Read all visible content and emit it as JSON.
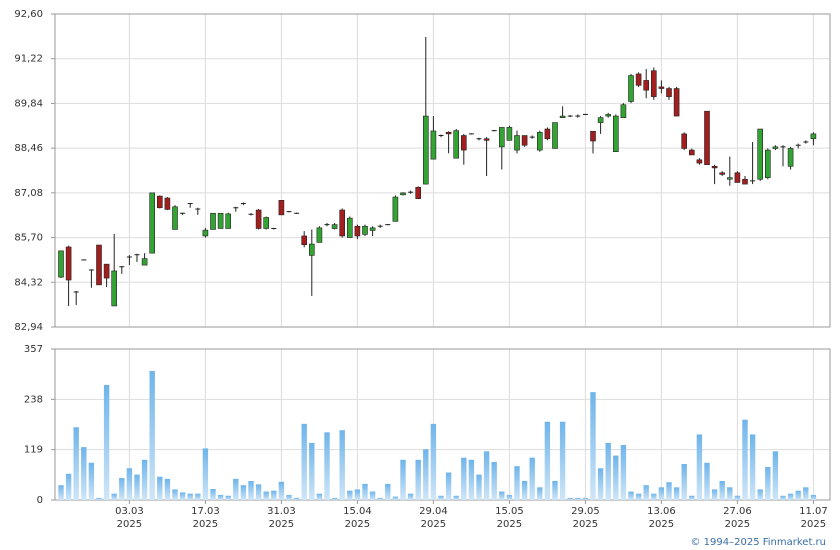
{
  "chart_data": [
    {
      "type": "candlestick",
      "open": [
        84.48,
        85.41,
        84.02,
        85.01,
        84.7,
        85.47,
        84.88,
        83.59,
        84.8,
        85.1,
        85.17,
        84.85,
        85.22,
        86.98,
        86.92,
        85.95,
        86.45,
        86.75,
        86.58,
        85.75,
        85.95,
        85.98,
        85.98,
        86.62,
        86.75,
        86.4,
        86.55,
        85.98,
        85.98,
        86.85,
        86.5,
        86.45,
        85.75,
        85.15,
        85.55,
        86.1,
        85.98,
        86.55,
        85.7,
        86.05,
        85.8,
        85.92,
        86.05,
        86.1,
        86.2,
        87.02,
        87.1,
        87.25,
        87.35,
        88.12,
        88.85,
        88.95,
        88.15,
        88.85,
        88.9,
        88.75,
        88.75,
        89.0,
        88.5,
        88.7,
        88.4,
        88.85,
        88.8,
        88.4,
        89.05,
        88.45,
        89.4,
        89.45,
        89.45,
        89.5,
        88.98,
        89.25,
        89.45,
        88.35,
        89.4,
        89.9,
        90.75,
        90.55,
        90.85,
        90.35,
        90.3,
        90.3,
        88.9,
        88.4,
        88.1,
        89.6,
        87.9,
        87.7,
        87.5,
        87.7,
        87.5,
        87.45,
        87.5,
        87.55,
        88.45,
        88.5,
        87.9,
        88.55,
        88.65,
        88.75
      ],
      "high": [
        85.3,
        85.45,
        84.05,
        85.02,
        84.72,
        85.47,
        84.88,
        85.81,
        84.82,
        85.16,
        85.2,
        85.22,
        87.08,
        87.0,
        86.95,
        86.7,
        86.47,
        86.77,
        86.62,
        86.0,
        86.45,
        86.45,
        86.47,
        86.65,
        86.78,
        86.45,
        86.58,
        86.35,
        86.0,
        86.85,
        86.52,
        86.47,
        85.9,
        85.95,
        86.05,
        86.15,
        86.15,
        86.6,
        86.35,
        86.1,
        86.1,
        86.05,
        86.1,
        86.12,
        87.0,
        87.1,
        87.15,
        87.28,
        91.89,
        89.45,
        88.88,
        88.98,
        89.05,
        88.9,
        88.92,
        88.78,
        88.8,
        89.02,
        89.1,
        89.15,
        89.0,
        88.85,
        88.85,
        89.0,
        89.1,
        89.25,
        89.75,
        89.48,
        89.5,
        89.52,
        88.98,
        89.45,
        89.55,
        89.5,
        89.85,
        90.75,
        90.8,
        90.9,
        90.95,
        90.55,
        90.35,
        90.35,
        88.95,
        88.45,
        88.15,
        89.6,
        87.95,
        87.75,
        88.2,
        87.75,
        87.6,
        88.65,
        89.05,
        88.45,
        88.55,
        88.55,
        88.5,
        88.6,
        88.7,
        88.95
      ],
      "low": [
        84.45,
        83.59,
        83.62,
        84.99,
        84.15,
        84.24,
        84.17,
        83.59,
        84.58,
        84.85,
        84.95,
        84.85,
        85.22,
        86.6,
        86.55,
        85.95,
        86.4,
        86.62,
        86.4,
        85.7,
        85.95,
        85.98,
        85.98,
        86.5,
        86.7,
        86.38,
        85.95,
        85.95,
        85.95,
        86.4,
        86.48,
        86.43,
        85.4,
        83.9,
        85.55,
        86.05,
        85.95,
        85.7,
        85.7,
        85.65,
        85.75,
        85.75,
        86.0,
        86.08,
        86.2,
        87.0,
        87.05,
        86.9,
        87.35,
        88.12,
        88.8,
        88.3,
        88.15,
        87.95,
        88.88,
        88.7,
        87.6,
        88.98,
        87.8,
        88.7,
        88.3,
        88.5,
        88.75,
        88.35,
        88.7,
        88.45,
        89.4,
        89.42,
        89.4,
        89.48,
        88.3,
        88.9,
        89.4,
        88.35,
        89.4,
        89.85,
        90.35,
        90.0,
        89.95,
        90.15,
        89.95,
        89.45,
        88.4,
        88.25,
        87.95,
        87.95,
        87.35,
        87.6,
        87.3,
        87.4,
        87.35,
        87.35,
        87.45,
        87.5,
        88.4,
        87.9,
        87.8,
        88.45,
        88.6,
        88.55
      ],
      "close": [
        85.29,
        84.39,
        84.0,
        85.0,
        84.68,
        84.24,
        84.45,
        84.67,
        84.8,
        85.1,
        85.15,
        85.05,
        87.08,
        86.62,
        86.57,
        86.65,
        86.43,
        86.72,
        86.55,
        85.93,
        86.45,
        86.45,
        86.43,
        86.62,
        86.75,
        86.42,
        85.98,
        86.32,
        85.97,
        86.4,
        86.5,
        86.45,
        85.48,
        85.5,
        86.0,
        86.1,
        86.1,
        85.75,
        86.3,
        85.75,
        86.05,
        86.0,
        86.05,
        86.1,
        86.95,
        87.08,
        87.1,
        86.9,
        89.45,
        88.99,
        88.85,
        88.9,
        89.0,
        88.4,
        88.9,
        88.75,
        88.7,
        89.0,
        89.1,
        89.1,
        88.85,
        88.55,
        88.8,
        88.95,
        88.75,
        89.25,
        89.45,
        89.45,
        89.45,
        89.5,
        88.68,
        89.4,
        89.5,
        89.45,
        89.8,
        90.7,
        90.4,
        90.25,
        90.05,
        90.3,
        90.05,
        89.45,
        88.45,
        88.25,
        88.0,
        87.95,
        87.85,
        87.65,
        87.55,
        87.4,
        87.35,
        87.45,
        89.05,
        88.4,
        88.5,
        88.5,
        88.45,
        88.55,
        88.65,
        88.9
      ],
      "up_color": "#33a333",
      "down_color": "#a31f1f",
      "ylim": [
        82.94,
        92.6
      ],
      "yticks": [
        {
          "value": 82.94,
          "label": "82,94"
        },
        {
          "value": 84.32,
          "label": "84,32"
        },
        {
          "value": 85.7,
          "label": "85,70"
        },
        {
          "value": 87.08,
          "label": "87,08"
        },
        {
          "value": 88.46,
          "label": "88,46"
        },
        {
          "value": 89.84,
          "label": "89,84"
        },
        {
          "value": 91.22,
          "label": "91,22"
        },
        {
          "value": 92.6,
          "label": "92,60"
        }
      ],
      "grid": true
    },
    {
      "type": "bar",
      "values": [
        35,
        62,
        172,
        125,
        88,
        5,
        272,
        15,
        52,
        75,
        60,
        95,
        305,
        55,
        50,
        25,
        18,
        15,
        15,
        122,
        26,
        12,
        10,
        50,
        35,
        45,
        37,
        20,
        22,
        43,
        12,
        5,
        180,
        135,
        15,
        160,
        5,
        165,
        22,
        25,
        38,
        20,
        5,
        38,
        8,
        95,
        15,
        95,
        120,
        180,
        10,
        65,
        10,
        100,
        95,
        60,
        115,
        90,
        20,
        12,
        80,
        45,
        100,
        30,
        185,
        45,
        185,
        5,
        5,
        5,
        255,
        75,
        135,
        105,
        130,
        20,
        15,
        35,
        15,
        30,
        42,
        30,
        85,
        10,
        155,
        88,
        25,
        45,
        30,
        10,
        190,
        155,
        25,
        78,
        115,
        10,
        15,
        22,
        30,
        12
      ],
      "color": "#8fc6ee",
      "ylim": [
        0,
        357
      ],
      "yticks": [
        0,
        119,
        238,
        357
      ],
      "xticks": [
        {
          "value": 9,
          "label": "03.03",
          "year": "2025"
        },
        {
          "value": 19,
          "label": "17.03",
          "year": "2025"
        },
        {
          "value": 29,
          "label": "31.03",
          "year": "2025"
        },
        {
          "value": 39,
          "label": "15.04",
          "year": "2025"
        },
        {
          "value": 49,
          "label": "29.04",
          "year": "2025"
        },
        {
          "value": 59,
          "label": "15.05",
          "year": "2025"
        },
        {
          "value": 69,
          "label": "29.05",
          "year": "2025"
        },
        {
          "value": 79,
          "label": "13.06",
          "year": "2025"
        },
        {
          "value": 89,
          "label": "27.06",
          "year": "2025"
        },
        {
          "value": 99,
          "label": "11.07",
          "year": "2025"
        }
      ],
      "grid": true
    }
  ],
  "credit": "© 1994–2025 Finmarket.ru"
}
